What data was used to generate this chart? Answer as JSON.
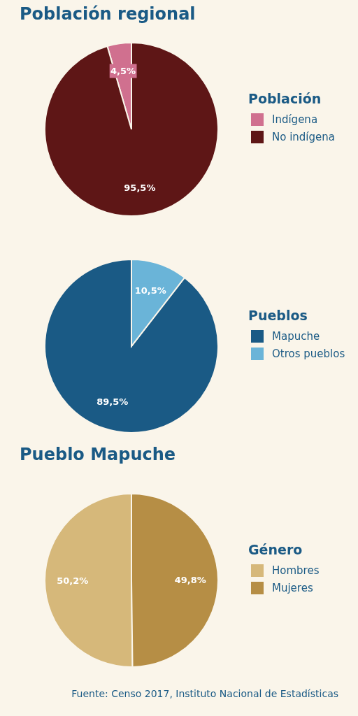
{
  "chart_data": [
    {
      "type": "pie",
      "title": "Población regional",
      "legend_title": "Población",
      "legend": "right",
      "categories": [
        "Indígena",
        "No indígena"
      ],
      "values": [
        4.5,
        95.5
      ],
      "colors": [
        "#d0708f",
        "#5e1616"
      ],
      "value_labels": [
        "4,5%",
        "95,5%"
      ]
    },
    {
      "type": "pie",
      "legend_title": "Pueblos",
      "legend": "right",
      "categories": [
        "Mapuche",
        "Otros pueblos"
      ],
      "values": [
        89.5,
        10.5
      ],
      "colors": [
        "#1a5a85",
        "#6ab4d8"
      ],
      "value_labels": [
        "89,5%",
        "10,5%"
      ]
    },
    {
      "type": "pie",
      "title": "Pueblo Mapuche",
      "legend_title": "Género",
      "legend": "right",
      "categories": [
        "Hombres",
        "Mujeres"
      ],
      "values": [
        50.2,
        49.8
      ],
      "colors": [
        "#d6b87a",
        "#b68e45"
      ],
      "value_labels": [
        "50,2%",
        "49,8%"
      ],
      "annotations": [
        "Fuente: Censo 2017, Instituto Nacional de Estadísticas"
      ]
    }
  ]
}
